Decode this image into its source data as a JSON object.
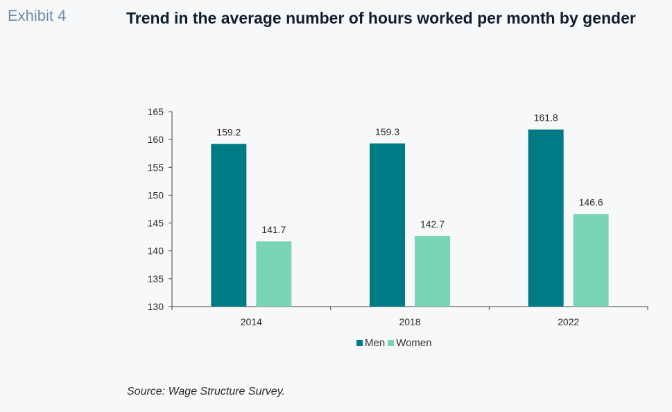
{
  "exhibit_label": "Exhibit 4",
  "title": "Trend in the average number of hours worked per month by gender",
  "source": "Source: Wage Structure Survey.",
  "colors": {
    "men": "#007a85",
    "women": "#79d5b6",
    "axis": "#444444"
  },
  "chart_data": {
    "type": "bar",
    "categories": [
      "2014",
      "2018",
      "2022"
    ],
    "series": [
      {
        "name": "Men",
        "values": [
          159.2,
          159.3,
          161.8
        ]
      },
      {
        "name": "Women",
        "values": [
          141.7,
          142.7,
          146.6
        ]
      }
    ],
    "ylim": [
      130,
      165
    ],
    "yticks": [
      130,
      135,
      140,
      145,
      150,
      155,
      160,
      165
    ],
    "data_labels": [
      [
        "159.2",
        "159.3",
        "161.8"
      ],
      [
        "141.7",
        "142.7",
        "146.6"
      ]
    ],
    "legend_position": "bottom",
    "grid": false
  }
}
